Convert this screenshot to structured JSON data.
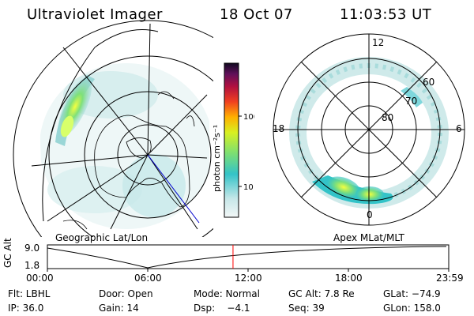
{
  "header": {
    "instrument": "Ultraviolet Imager",
    "date": "18 Oct 07",
    "time": "11:03:53 UT"
  },
  "colorbar": {
    "unit_label": "photon cm⁻²s⁻¹",
    "ticks": [
      "100",
      "10"
    ]
  },
  "left_panel": {
    "label": "Geographic Lat/Lon"
  },
  "right_panel": {
    "label": "Apex MLat/MLT",
    "mlt_labels": {
      "top": "12",
      "left": "18",
      "right": "6",
      "bottom": "0"
    },
    "lat_labels": [
      "60",
      "70",
      "80"
    ]
  },
  "timeline": {
    "ylabel": "GC Alt",
    "yticks": [
      "9.0",
      "1.8"
    ],
    "xticks": [
      "00:00",
      "06:00",
      "12:00",
      "18:00",
      "23:59"
    ],
    "current_time_fraction": 0.4625,
    "marker_color": "#ff0000"
  },
  "status": {
    "flt": "Flt: LBHL",
    "door": "Door: Open",
    "mode": "Mode: Normal",
    "gc_alt": "GC Alt: 7.8 Re",
    "glat": "GLat: −74.9",
    "ip": "IP: 36.0",
    "gain": "Gain: 14",
    "dsp": "Dsp:    −4.1",
    "seq": "Seq: 39",
    "glon": "GLon: 158.0"
  }
}
